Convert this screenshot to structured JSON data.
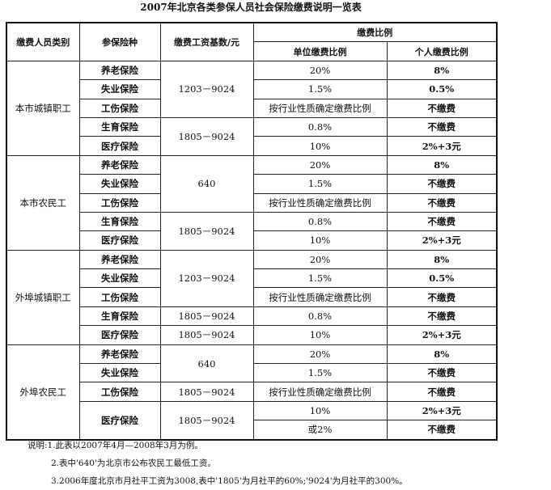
{
  "title": "2007年北京各类参保人员社会保险缴费说明一览表",
  "headers": {
    "category": "缴费人员类别",
    "insurance": "参保险种",
    "base": "缴费工资基数/元",
    "ratio": "缴费比例",
    "employer": "单位缴费比例",
    "individual": "个人缴费比例"
  },
  "groups": [
    {
      "category": "本市城镇职工",
      "rows": [
        {
          "insurance": "养老保险",
          "employer": "20%",
          "individual": "8%"
        },
        {
          "insurance": "失业保险",
          "employer": "1.5%",
          "individual": "0.5%"
        },
        {
          "insurance": "工伤保险",
          "employer": "按行业性质确定缴费比例",
          "individual": "不缴费"
        },
        {
          "insurance": "生育保险",
          "employer": "0.8%",
          "individual": "不缴费"
        },
        {
          "insurance": "医疗保险",
          "employer": "10%",
          "individual": "2%+3元"
        }
      ],
      "bases": [
        {
          "value": "1203－9024",
          "span": 3
        },
        {
          "value": "1805－9024",
          "span": 2
        }
      ]
    },
    {
      "category": "本市农民工",
      "rows": [
        {
          "insurance": "养老保险",
          "employer": "20%",
          "individual": "8%"
        },
        {
          "insurance": "失业保险",
          "employer": "1.5%",
          "individual": "不缴费"
        },
        {
          "insurance": "工伤保险",
          "employer": "按行业性质确定缴费比例",
          "individual": "不缴费"
        },
        {
          "insurance": "生育保险",
          "employer": "0.8%",
          "individual": "不缴费"
        },
        {
          "insurance": "医疗保险",
          "employer": "10%",
          "individual": "2%+3元"
        }
      ],
      "bases": [
        {
          "value": "640",
          "span": 3
        },
        {
          "value": "1805－9024",
          "span": 2
        }
      ]
    },
    {
      "category": "外埠城镇职工",
      "rows": [
        {
          "insurance": "养老保险",
          "employer": "20%",
          "individual": "8%"
        },
        {
          "insurance": "失业保险",
          "employer": "1.5%",
          "individual": "0.5%"
        },
        {
          "insurance": "工伤保险",
          "employer": "按行业性质确定缴费比例",
          "individual": "不缴费"
        },
        {
          "insurance": "生育保险",
          "employer": "0.8%",
          "individual": "不缴费"
        },
        {
          "insurance": "医疗保险",
          "employer": "10%",
          "individual": "2%+3元"
        }
      ],
      "bases": [
        {
          "value": "1203－9024",
          "span": 3
        },
        {
          "value": "1805－9024",
          "span": 1
        },
        {
          "value": "1805－9024",
          "span": 1
        }
      ]
    },
    {
      "category": "外埠农民工",
      "rows": [
        {
          "insurance": "养老保险",
          "employer": "20%",
          "individual": "8%"
        },
        {
          "insurance": "失业保险",
          "employer": "1.5%",
          "individual": "不缴费"
        },
        {
          "insurance": "工伤保险",
          "employer": "按行业性质确定缴费比例",
          "individual": "不缴费"
        },
        {
          "insurance": "医疗保险",
          "insurance_span": 2,
          "employer": "10%",
          "individual": "2%+3元"
        },
        {
          "employer": "或2%",
          "individual": "不缴费"
        }
      ],
      "bases": [
        {
          "value": "640",
          "span": 2
        },
        {
          "value": "1805－9024",
          "span": 1
        },
        {
          "value": "1805－9024",
          "span": 2
        }
      ]
    }
  ],
  "notes": [
    "说明:1.此表以2007年4月—2008年3月为例。",
    "2.表中'640'为北京市公布农民工最低工资。",
    "3.2006年度北京市月社平工资为3008,表中'1805'为月社平的60%;'9024'为月社平的300%。"
  ]
}
